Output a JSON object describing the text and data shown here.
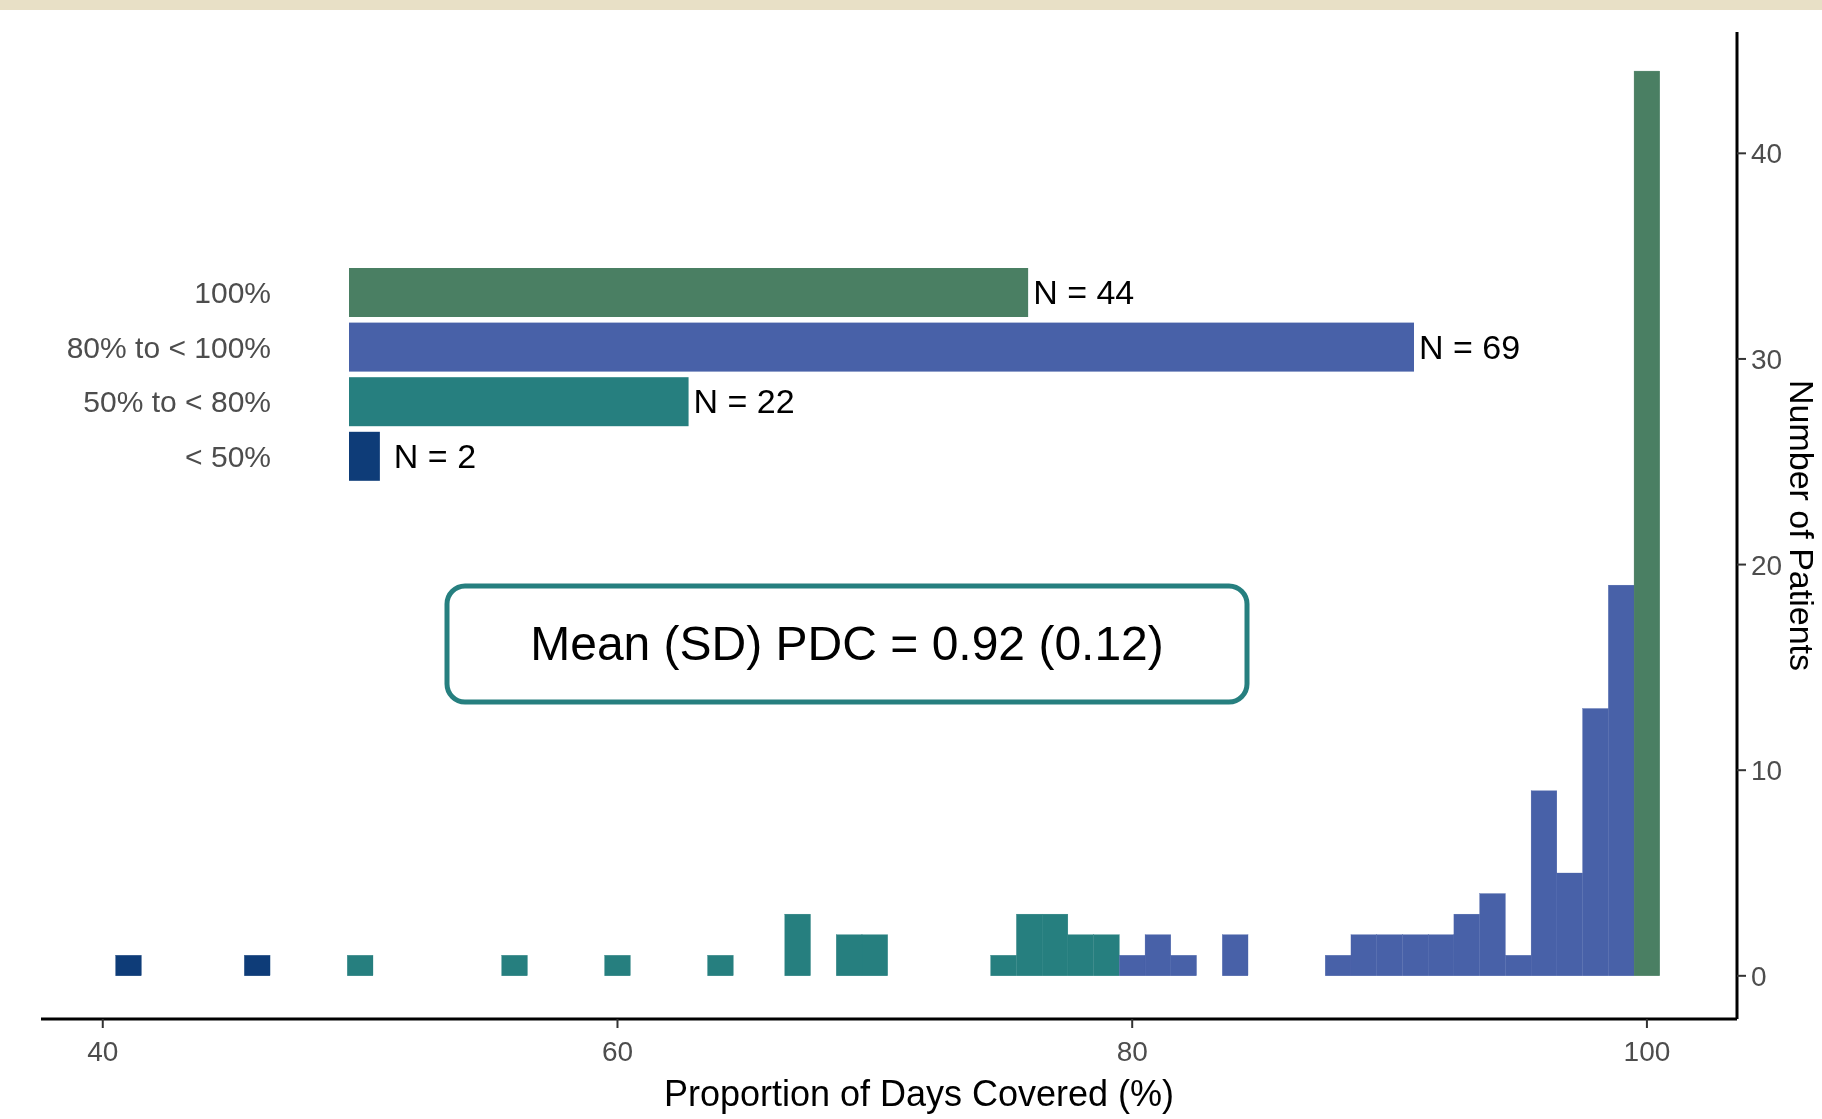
{
  "chart_data": [
    {
      "type": "histogram",
      "xlabel": "Proportion of Days Covered (%)",
      "ylabel": "Number of Patients",
      "bins": [
        40.5,
        41.5,
        42.5,
        43.5,
        44.5,
        45.5,
        46.5,
        47.5,
        48.5,
        49.5,
        50.5,
        51.5,
        52.5,
        53.5,
        54.5,
        55.5,
        56.5,
        57.5,
        58.5,
        59.5,
        60.5,
        61.5,
        62.5,
        63.5,
        64.5,
        65.5,
        66.5,
        67.5,
        68.5,
        69.5,
        70.5,
        71.5,
        72.5,
        73.5,
        74.5,
        75.5,
        76.5,
        77.5,
        78.5,
        79.5,
        80.5,
        81.5,
        82.5,
        83.5,
        84.5,
        85.5,
        86.5,
        87.5,
        88.5,
        89.5,
        90.5,
        91.5,
        92.5,
        93.5,
        94.5,
        95.5,
        96.5,
        97.5,
        98.5,
        99.5,
        100.5
      ],
      "values": [
        1,
        0,
        0,
        0,
        0,
        1,
        0,
        0,
        0,
        1,
        0,
        0,
        0,
        0,
        0,
        1,
        0,
        0,
        0,
        1,
        0,
        0,
        0,
        1,
        0,
        0,
        3,
        0,
        2,
        2,
        0,
        0,
        0,
        0,
        1,
        3,
        3,
        2,
        2,
        1,
        2,
        1,
        0,
        2,
        0,
        0,
        0,
        1,
        2,
        2,
        2,
        2,
        3,
        4,
        1,
        9,
        5,
        13,
        19,
        44
      ],
      "colors": [
        "#0e3c78",
        "#0e3c78",
        "#0e3c78",
        "#0e3c78",
        "#0e3c78",
        "#0e3c78",
        "#0e3c78",
        "#0e3c78",
        "#0e3c78",
        "#267f7f",
        "#267f7f",
        "#267f7f",
        "#267f7f",
        "#267f7f",
        "#267f7f",
        "#267f7f",
        "#267f7f",
        "#267f7f",
        "#267f7f",
        "#267f7f",
        "#267f7f",
        "#267f7f",
        "#267f7f",
        "#267f7f",
        "#267f7f",
        "#267f7f",
        "#267f7f",
        "#267f7f",
        "#267f7f",
        "#267f7f",
        "#267f7f",
        "#267f7f",
        "#267f7f",
        "#267f7f",
        "#267f7f",
        "#267f7f",
        "#267f7f",
        "#267f7f",
        "#267f7f",
        "#4861a8",
        "#4861a8",
        "#4861a8",
        "#4861a8",
        "#4861a8",
        "#4861a8",
        "#4861a8",
        "#4861a8",
        "#4861a8",
        "#4861a8",
        "#4861a8",
        "#4861a8",
        "#4861a8",
        "#4861a8",
        "#4861a8",
        "#4861a8",
        "#4861a8",
        "#4861a8",
        "#4861a8",
        "#4861a8",
        "#4a7f63"
      ],
      "xlim": [
        37.6,
        103.5
      ],
      "ylim": [
        -2.1,
        45.9
      ],
      "xticks": [
        40,
        60,
        80,
        100
      ],
      "yticks": [
        0,
        10,
        20,
        30,
        40
      ],
      "annotations": [
        "Mean (SD) PDC = 0.92 (0.12)"
      ]
    },
    {
      "type": "bar",
      "orientation": "horizontal",
      "categories": [
        "100%",
        "80% to < 100%",
        "50% to < 80%",
        "< 50%"
      ],
      "values": [
        44,
        69,
        22,
        2
      ],
      "colors": [
        "#4a7f63",
        "#4861a8",
        "#267f7f",
        "#0e3c78"
      ],
      "value_labels": [
        "N = 44",
        "N = 69",
        "N = 22",
        "N = 2"
      ]
    }
  ]
}
